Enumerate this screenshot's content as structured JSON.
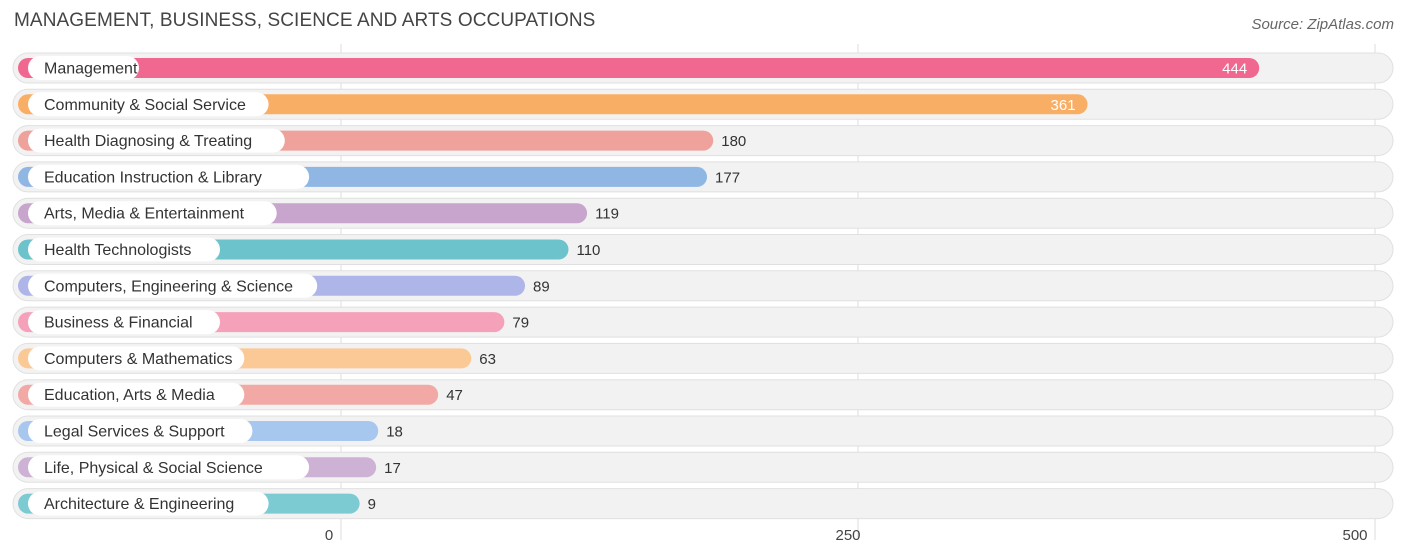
{
  "header": {
    "title": "MANAGEMENT, BUSINESS, SCIENCE AND ARTS OCCUPATIONS",
    "source": "Source: ZipAtlas.com"
  },
  "chart_data": {
    "type": "bar",
    "orientation": "horizontal",
    "title": "MANAGEMENT, BUSINESS, SCIENCE AND ARTS OCCUPATIONS",
    "xlim": [
      0,
      500
    ],
    "ticks": [
      0,
      250,
      500
    ],
    "tick_labels": [
      "0",
      "250",
      "500"
    ],
    "grid": true,
    "categories": [
      "Management",
      "Community & Social Service",
      "Health Diagnosing & Treating",
      "Education Instruction & Library",
      "Arts, Media & Entertainment",
      "Health Technologists",
      "Computers, Engineering & Science",
      "Business & Financial",
      "Computers & Mathematics",
      "Education, Arts & Media",
      "Legal Services & Support",
      "Life, Physical & Social Science",
      "Architecture & Engineering"
    ],
    "values": [
      444,
      361,
      180,
      177,
      119,
      110,
      89,
      79,
      63,
      47,
      18,
      17,
      9
    ],
    "colors": [
      "#f06890",
      "#f9ae66",
      "#eea29b",
      "#90b7e4",
      "#c8a5cd",
      "#6cc3cc",
      "#aeb5e8",
      "#f6a1ba",
      "#fbc996",
      "#f2a9a6",
      "#a8c7ef",
      "#cdb2d5",
      "#7dcbd2"
    ]
  }
}
